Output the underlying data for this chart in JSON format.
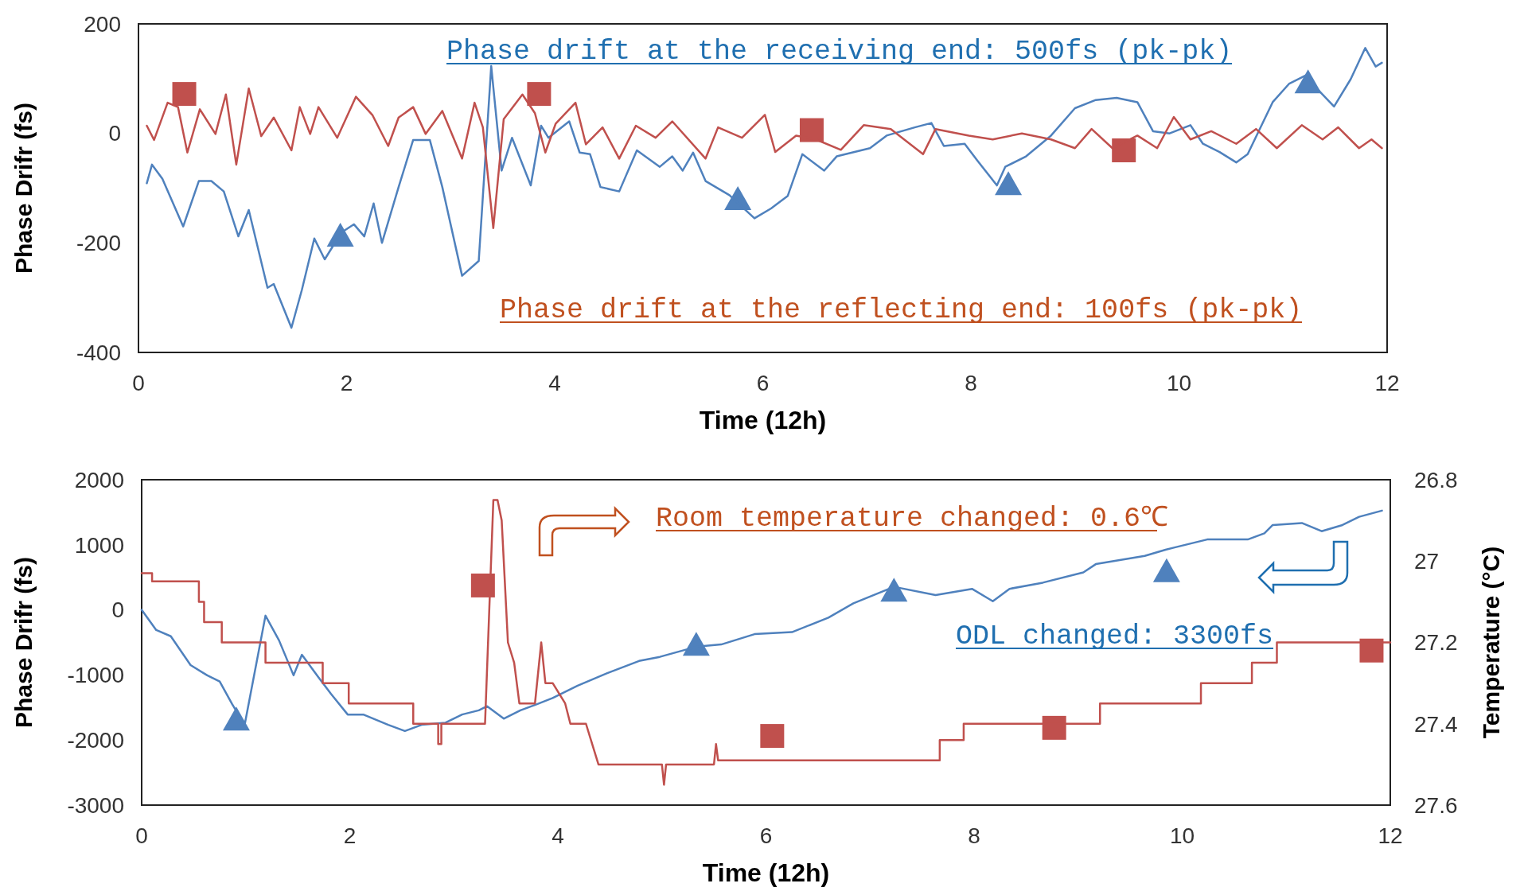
{
  "chart_data": [
    {
      "type": "line",
      "xlabel": "Time (12h)",
      "ylabel": "Phase Drifr (fs)",
      "xlim": [
        0,
        12
      ],
      "xticks": [
        0,
        2,
        4,
        6,
        8,
        10,
        12
      ],
      "ylim": [
        -400,
        200
      ],
      "yticks": [
        -400,
        -200,
        0,
        200
      ],
      "grid": false,
      "annotations": [
        "Phase drift at the receiving end: 500fs (pk-pk)",
        "Phase drift at the reflecting end: 100fs (pk-pk)"
      ],
      "series": [
        {
          "color": "#4f81bd",
          "x": [
            0.08,
            0.13,
            0.23,
            0.43,
            0.58,
            0.7,
            0.82,
            0.96,
            1.06,
            1.24,
            1.3,
            1.47,
            1.57,
            1.69,
            1.79,
            1.95,
            2.07,
            2.17,
            2.26,
            2.34,
            2.5,
            2.64,
            2.8,
            2.92,
            3.11,
            3.27,
            3.39,
            3.49,
            3.59,
            3.77,
            3.87,
            3.94,
            4.14,
            4.24,
            4.34,
            4.44,
            4.62,
            4.79,
            5.01,
            5.13,
            5.23,
            5.33,
            5.45,
            5.68,
            5.92,
            6.08,
            6.24,
            6.38,
            6.59,
            6.71,
            7.03,
            7.19,
            7.46,
            7.62,
            7.74,
            7.94,
            8.06,
            8.25,
            8.33,
            8.53,
            8.77,
            9.0,
            9.2,
            9.4,
            9.6,
            9.75,
            9.91,
            10.11,
            10.23,
            10.39,
            10.55,
            10.66,
            10.9,
            11.06,
            11.22,
            11.34,
            11.49,
            11.65,
            11.79,
            11.89,
            11.95
          ],
          "values": [
            -91,
            -57,
            -83,
            -170,
            -87,
            -87,
            -106,
            -188,
            -140,
            -282,
            -275,
            -355,
            -286,
            -192,
            -230,
            -181,
            -166,
            -188,
            -128,
            -200,
            -98,
            -12,
            -12,
            -98,
            -260,
            -233,
            123,
            -68,
            -8,
            -95,
            14,
            -8,
            22,
            -35,
            -38,
            -98,
            -106,
            -31,
            -61,
            -42,
            -68,
            -35,
            -87,
            -113,
            -155,
            -137,
            -114,
            -38,
            -68,
            -42,
            -27,
            -4,
            11,
            19,
            -23,
            -19,
            -49,
            -95,
            -61,
            -42,
            -4,
            46,
            61,
            65,
            57,
            4,
            0,
            15,
            -19,
            -34,
            -53,
            -38,
            57,
            91,
            106,
            79,
            49,
            99,
            156,
            122,
            129
          ]
        },
        {
          "color": "#c0504d",
          "x": [
            0.08,
            0.15,
            0.28,
            0.38,
            0.47,
            0.59,
            0.74,
            0.84,
            0.94,
            1.06,
            1.18,
            1.3,
            1.47,
            1.55,
            1.65,
            1.73,
            1.91,
            2.09,
            2.25,
            2.4,
            2.5,
            2.64,
            2.76,
            2.92,
            3.11,
            3.23,
            3.31,
            3.41,
            3.51,
            3.69,
            3.81,
            3.91,
            4.01,
            4.2,
            4.3,
            4.46,
            4.62,
            4.78,
            4.97,
            5.13,
            5.45,
            5.57,
            5.8,
            6.02,
            6.12,
            6.32,
            6.51,
            6.75,
            6.97,
            7.23,
            7.54,
            7.66,
            7.98,
            8.21,
            8.49,
            8.77,
            9.0,
            9.16,
            9.36,
            9.6,
            9.79,
            9.95,
            10.11,
            10.31,
            10.55,
            10.74,
            10.94,
            11.18,
            11.38,
            11.53,
            11.73,
            11.85,
            11.95
          ],
          "values": [
            14,
            -12,
            56,
            48,
            -35,
            44,
            -1,
            71,
            -57,
            82,
            -5,
            29,
            -31,
            48,
            -1,
            48,
            -8,
            67,
            33,
            -23,
            29,
            48,
            -1,
            41,
            -46,
            56,
            11,
            -173,
            26,
            71,
            37,
            -35,
            18,
            56,
            -20,
            11,
            -46,
            14,
            -8,
            22,
            -46,
            11,
            -8,
            34,
            -34,
            -4,
            -11,
            -30,
            15,
            8,
            -38,
            8,
            -4,
            -11,
            0,
            -11,
            -27,
            8,
            -27,
            -4,
            -27,
            30,
            -11,
            4,
            -19,
            8,
            -27,
            15,
            -11,
            11,
            -27,
            -11,
            -27
          ]
        },
        {
          "type": "scatter",
          "marker": "triangle",
          "color": "#4f81bd",
          "x": [
            1.94,
            5.76,
            8.36,
            11.24
          ],
          "values": [
            -185,
            -118,
            -91,
            95
          ]
        },
        {
          "type": "scatter",
          "marker": "square",
          "color": "#c0504d",
          "x": [
            0.44,
            3.85,
            6.47,
            9.47
          ],
          "values": [
            72,
            72,
            6,
            -31
          ]
        }
      ]
    },
    {
      "type": "line",
      "xlabel": "Time (12h)",
      "ylabel": "Phase Drifr (fs)",
      "y2label": "Temperature (°C)",
      "xlim": [
        0,
        12
      ],
      "xticks": [
        0,
        2,
        4,
        6,
        8,
        10,
        12
      ],
      "ylim": [
        -3000,
        2000
      ],
      "yticks": [
        -3000,
        -2000,
        -1000,
        0,
        1000,
        2000
      ],
      "y2lim": [
        27.6,
        26.8
      ],
      "y2ticks": [
        26.8,
        27,
        27.2,
        27.4,
        27.6
      ],
      "grid": false,
      "annotations": [
        "ODL changed: 3300fs",
        "Room temperature changed: 0.6℃"
      ],
      "series": [
        {
          "color": "#4f81bd",
          "x": [
            0,
            0.14,
            0.28,
            0.47,
            0.63,
            0.75,
            0.87,
            0.99,
            1.19,
            1.32,
            1.46,
            1.54,
            1.7,
            1.82,
            1.98,
            2.13,
            2.37,
            2.53,
            2.69,
            2.92,
            3.08,
            3.24,
            3.32,
            3.48,
            3.64,
            3.8,
            3.95,
            4.19,
            4.47,
            4.78,
            4.98,
            5.34,
            5.57,
            5.89,
            6.25,
            6.6,
            6.84,
            7.23,
            7.63,
            7.98,
            8.18,
            8.34,
            8.66,
            9.05,
            9.17,
            9.64,
            9.84,
            9.92,
            10.24,
            10.63,
            10.79,
            10.87,
            11.15,
            11.34,
            11.54,
            11.7,
            11.92
          ],
          "values": [
            0,
            -310,
            -405,
            -848,
            -1006,
            -1101,
            -1449,
            -1766,
            -89,
            -468,
            -1006,
            -690,
            -1038,
            -1291,
            -1608,
            -1608,
            -1766,
            -1861,
            -1766,
            -1734,
            -1608,
            -1544,
            -1481,
            -1671,
            -1544,
            -1449,
            -1354,
            -1165,
            -975,
            -785,
            -722,
            -563,
            -532,
            -373,
            -342,
            -120,
            101,
            354,
            228,
            323,
            133,
            323,
            418,
            576,
            703,
            829,
            924,
            956,
            1082,
            1082,
            1177,
            1304,
            1335,
            1209,
            1304,
            1430,
            1525
          ]
        },
        {
          "color": "#c0504d",
          "axis": "y2",
          "x": [
            0,
            0.1,
            0.1,
            0.55,
            0.55,
            0.6,
            0.6,
            0.77,
            0.77,
            1.19,
            1.19,
            1.74,
            1.74,
            1.99,
            1.99,
            2.61,
            2.61,
            2.85,
            2.85,
            2.88,
            2.88,
            3.3,
            3.38,
            3.42,
            3.46,
            3.52,
            3.58,
            3.63,
            3.78,
            3.84,
            3.88,
            3.95,
            4.07,
            4.12,
            4.27,
            4.33,
            4.39,
            5.0,
            5.02,
            5.04,
            5.5,
            5.52,
            5.54,
            7.67,
            7.67,
            7.9,
            7.9,
            9.21,
            9.21,
            10.18,
            10.18,
            10.67,
            10.67,
            10.91,
            10.91,
            11.58,
            11.58,
            12
          ],
          "values": [
            27.03,
            27.03,
            27.05,
            27.05,
            27.1,
            27.1,
            27.15,
            27.15,
            27.2,
            27.2,
            27.25,
            27.25,
            27.3,
            27.3,
            27.35,
            27.35,
            27.4,
            27.4,
            27.45,
            27.45,
            27.4,
            27.4,
            26.85,
            26.85,
            26.9,
            27.2,
            27.25,
            27.35,
            27.35,
            27.2,
            27.3,
            27.3,
            27.35,
            27.4,
            27.4,
            27.45,
            27.5,
            27.5,
            27.55,
            27.5,
            27.5,
            27.45,
            27.49,
            27.49,
            27.44,
            27.44,
            27.4,
            27.4,
            27.35,
            27.35,
            27.3,
            27.3,
            27.25,
            27.25,
            27.2,
            27.2,
            27.2,
            27.2
          ]
        },
        {
          "type": "scatter",
          "marker": "triangle",
          "color": "#4f81bd",
          "x": [
            0.91,
            5.33,
            7.23,
            9.85
          ],
          "values": [
            -1670,
            -520,
            310,
            610
          ]
        },
        {
          "type": "scatter",
          "marker": "square",
          "color": "#c0504d",
          "axis": "y2",
          "x": [
            3.28,
            6.06,
            8.77,
            11.82
          ],
          "values": [
            27.06,
            27.43,
            27.41,
            27.22
          ]
        }
      ]
    }
  ]
}
